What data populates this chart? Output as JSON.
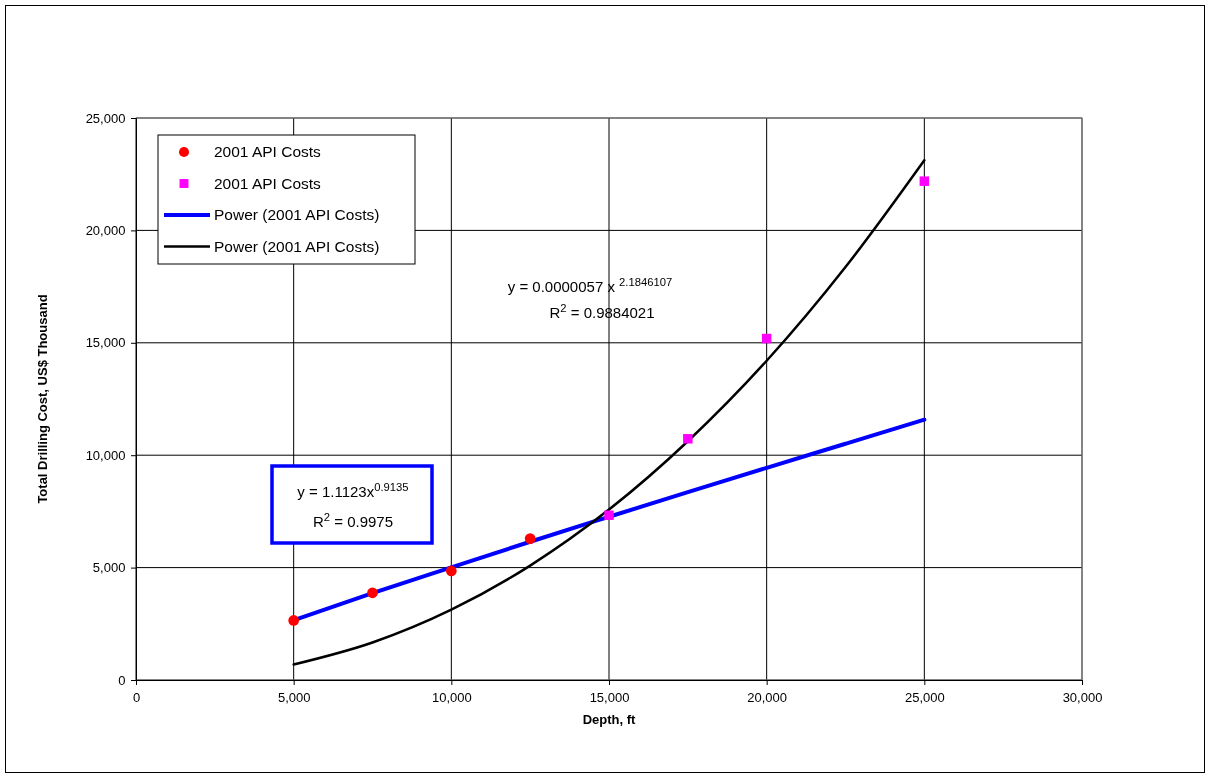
{
  "chart_data": {
    "type": "scatter",
    "xlabel": "Depth, ft",
    "ylabel": "Total Drilling Cost, US$ Thousand",
    "xlim": [
      0,
      30000
    ],
    "xticks": [
      {
        "value": 0,
        "label": "0"
      },
      {
        "value": 5000,
        "label": "5,000"
      },
      {
        "value": 10000,
        "label": "10,000"
      },
      {
        "value": 15000,
        "label": "15,000"
      },
      {
        "value": 20000,
        "label": "20,000"
      },
      {
        "value": 25000,
        "label": "25,000"
      },
      {
        "value": 30000,
        "label": "30,000"
      }
    ],
    "ylim": [
      0,
      25000
    ],
    "yticks": [
      {
        "value": 0,
        "label": "0"
      },
      {
        "value": 5000,
        "label": "5,000"
      },
      {
        "value": 10000,
        "label": "10,000"
      },
      {
        "value": 15000,
        "label": "15,000"
      },
      {
        "value": 20000,
        "label": "20,000"
      },
      {
        "value": 25000,
        "label": "25,000"
      }
    ],
    "grid": true,
    "legend": "top left",
    "series": [
      {
        "name": "2001 API Costs",
        "type": "scatter",
        "marker": "circle",
        "color": "#ff0000",
        "x": [
          5000,
          7500,
          10000,
          12500
        ],
        "values": [
          2650,
          3880,
          4850,
          6290
        ]
      },
      {
        "name": "2001 API Costs",
        "type": "scatter",
        "marker": "square",
        "color": "#ff00ff",
        "x": [
          15000,
          17500,
          20000,
          25000
        ],
        "values": [
          7330,
          10730,
          15190,
          22190
        ]
      },
      {
        "name": "Power (2001 API Costs)",
        "type": "line",
        "marker": "none",
        "color": "#0000ff",
        "x": [
          5000,
          7500,
          10000,
          12500,
          15000,
          17500,
          20000,
          22500,
          25000
        ],
        "values": [
          2660,
          3860,
          5010,
          6150,
          7260,
          8360,
          9440,
          10510,
          11580
        ]
      },
      {
        "name": "Power (2001 API Costs)",
        "type": "line",
        "marker": "none",
        "color": "#000000",
        "x": [
          5000,
          7500,
          10000,
          12500,
          15000,
          17500,
          20000,
          22500,
          25000
        ],
        "values": [
          690,
          1670,
          3130,
          5090,
          7580,
          10620,
          14200,
          18370,
          23120
        ]
      }
    ],
    "annotations": [
      "y =  0.0000057 x $^{2.1846107}$",
      "R$^{2}$ =  0.9884021",
      "y = 1.1123x$^{0.9135}$",
      "R$^{2}$ = 0.9975"
    ]
  }
}
